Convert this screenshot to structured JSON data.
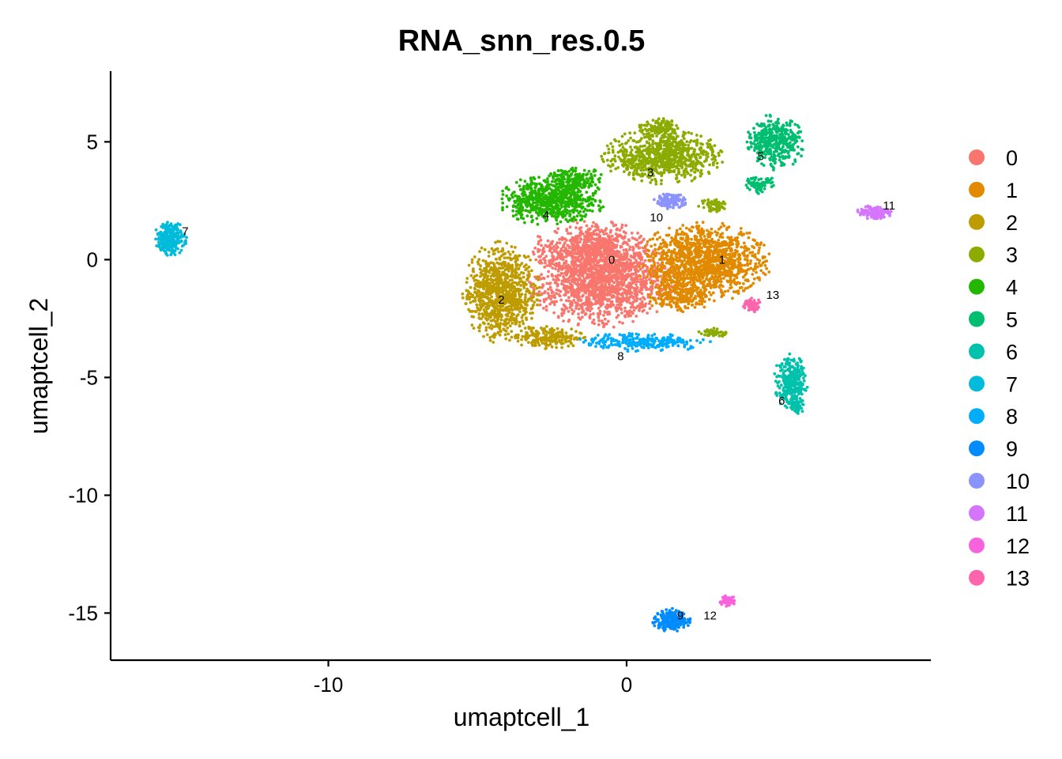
{
  "chart_data": {
    "type": "scatter",
    "title": "RNA_snn_res.0.5",
    "xlabel": "umaptcell_1",
    "ylabel": "umaptcell_2",
    "xlim": [
      -17.3,
      10.2
    ],
    "ylim": [
      -17.0,
      8.0
    ],
    "x_ticks": [
      -10,
      0
    ],
    "y_ticks": [
      5,
      0,
      -5,
      -10,
      -15
    ],
    "grid": false,
    "legend_position": "right",
    "clusters": [
      {
        "name": "0",
        "label": "0",
        "color": "#F8766D",
        "label_pos": [
          -0.5,
          0.0
        ],
        "blobs": [
          {
            "cx": -0.8,
            "cy": -0.9,
            "rx": 2.6,
            "ry": 2.0,
            "n": 1500
          },
          {
            "cx": -1.2,
            "cy": 0.5,
            "rx": 2.0,
            "ry": 1.2,
            "n": 500
          }
        ]
      },
      {
        "name": "1",
        "label": "1",
        "color": "#E18A00",
        "label_pos": [
          3.2,
          0.0
        ],
        "blobs": [
          {
            "cx": 2.6,
            "cy": -0.1,
            "rx": 2.3,
            "ry": 1.7,
            "n": 1300
          },
          {
            "cx": 1.8,
            "cy": -1.6,
            "rx": 1.2,
            "ry": 0.7,
            "n": 200
          }
        ]
      },
      {
        "name": "2",
        "label": "2",
        "color": "#BE9C00",
        "label_pos": [
          -4.2,
          -1.7
        ],
        "blobs": [
          {
            "cx": -4.2,
            "cy": -1.4,
            "rx": 1.3,
            "ry": 2.2,
            "n": 900
          },
          {
            "cx": -2.6,
            "cy": -3.3,
            "rx": 1.3,
            "ry": 0.5,
            "n": 200
          }
        ]
      },
      {
        "name": "3",
        "label": "3",
        "color": "#8CAB00",
        "label_pos": [
          0.8,
          3.7
        ],
        "blobs": [
          {
            "cx": 1.2,
            "cy": 4.4,
            "rx": 2.1,
            "ry": 1.2,
            "n": 800
          },
          {
            "cx": 1.1,
            "cy": 5.6,
            "rx": 0.7,
            "ry": 0.4,
            "n": 120
          },
          {
            "cx": 2.9,
            "cy": 2.3,
            "rx": 0.5,
            "ry": 0.3,
            "n": 60
          },
          {
            "cx": 2.9,
            "cy": -3.1,
            "rx": 0.5,
            "ry": 0.2,
            "n": 50
          }
        ]
      },
      {
        "name": "4",
        "label": "4",
        "color": "#24B700",
        "label_pos": [
          -2.7,
          1.9
        ],
        "blobs": [
          {
            "cx": -2.5,
            "cy": 2.5,
            "rx": 1.8,
            "ry": 1.1,
            "n": 700
          },
          {
            "cx": -1.8,
            "cy": 3.5,
            "rx": 1.1,
            "ry": 0.5,
            "n": 150
          }
        ]
      },
      {
        "name": "5",
        "label": "5",
        "color": "#00BE70",
        "label_pos": [
          4.5,
          4.4
        ],
        "blobs": [
          {
            "cx": 5.0,
            "cy": 5.0,
            "rx": 1.0,
            "ry": 1.2,
            "n": 380
          },
          {
            "cx": 4.5,
            "cy": 3.2,
            "rx": 0.6,
            "ry": 0.4,
            "n": 80
          }
        ]
      },
      {
        "name": "6",
        "label": "6",
        "color": "#00C1AB",
        "label_pos": [
          5.2,
          -6.0
        ],
        "blobs": [
          {
            "cx": 5.5,
            "cy": -5.2,
            "rx": 0.6,
            "ry": 1.2,
            "n": 300
          },
          {
            "cx": 5.7,
            "cy": -6.2,
            "rx": 0.3,
            "ry": 0.4,
            "n": 60
          }
        ]
      },
      {
        "name": "7",
        "label": "7",
        "color": "#00BBDA",
        "label_pos": [
          -14.8,
          1.2
        ],
        "blobs": [
          {
            "cx": -15.3,
            "cy": 0.9,
            "rx": 0.55,
            "ry": 0.75,
            "n": 260
          }
        ]
      },
      {
        "name": "8",
        "label": "8",
        "color": "#00ACFC",
        "label_pos": [
          -0.2,
          -4.1
        ],
        "blobs": [
          {
            "cx": 0.6,
            "cy": -3.5,
            "rx": 2.4,
            "ry": 0.4,
            "n": 260
          }
        ]
      },
      {
        "name": "9",
        "label": "9",
        "color": "#008BFF",
        "label_pos": [
          1.8,
          -15.1
        ],
        "blobs": [
          {
            "cx": 1.5,
            "cy": -15.3,
            "rx": 0.65,
            "ry": 0.5,
            "n": 230
          }
        ]
      },
      {
        "name": "10",
        "label": "10",
        "color": "#8B93FF",
        "label_pos": [
          1.0,
          1.8
        ],
        "blobs": [
          {
            "cx": 1.5,
            "cy": 2.5,
            "rx": 0.6,
            "ry": 0.35,
            "n": 120
          }
        ]
      },
      {
        "name": "11",
        "label": "11",
        "color": "#D575FE",
        "label_pos": [
          8.8,
          2.3
        ],
        "blobs": [
          {
            "cx": 8.3,
            "cy": 2.0,
            "rx": 0.6,
            "ry": 0.3,
            "n": 120
          }
        ]
      },
      {
        "name": "12",
        "label": "12",
        "color": "#F962DD",
        "label_pos": [
          2.8,
          -15.1
        ],
        "blobs": [
          {
            "cx": 3.4,
            "cy": -14.5,
            "rx": 0.3,
            "ry": 0.25,
            "n": 60
          }
        ]
      },
      {
        "name": "13",
        "label": "13",
        "color": "#FF65AC",
        "label_pos": [
          4.9,
          -1.5
        ],
        "blobs": [
          {
            "cx": 4.2,
            "cy": -1.9,
            "rx": 0.3,
            "ry": 0.35,
            "n": 80
          }
        ]
      }
    ]
  }
}
